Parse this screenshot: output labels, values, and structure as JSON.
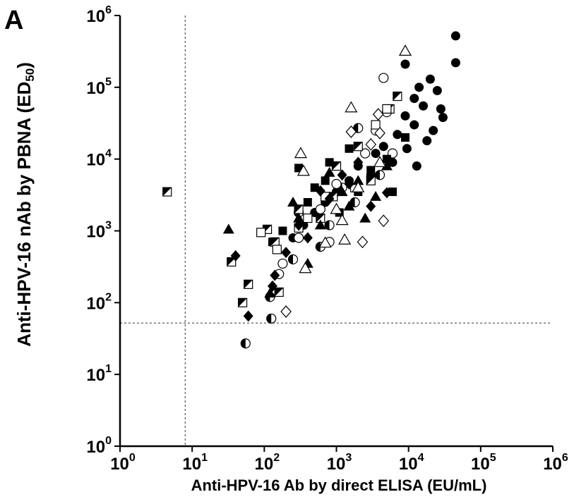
{
  "panel_label": "A",
  "chart_data": {
    "type": "scatter",
    "title": "",
    "xlabel": "Anti-HPV-16 Ab by direct ELISA (EU/mL)",
    "ylabel": {
      "main": "Anti-HPV-16 nAb by PBNA (ED",
      "subscript": "50",
      "suffix": ")"
    },
    "x_scale": "log",
    "y_scale": "log",
    "xlim": [
      1,
      1000000
    ],
    "ylim": [
      1,
      1000000
    ],
    "x_ticks": [
      {
        "base": "10",
        "exp": "0",
        "value": 1
      },
      {
        "base": "10",
        "exp": "1",
        "value": 10
      },
      {
        "base": "10",
        "exp": "2",
        "value": 100
      },
      {
        "base": "10",
        "exp": "3",
        "value": 1000
      },
      {
        "base": "10",
        "exp": "4",
        "value": 10000
      },
      {
        "base": "10",
        "exp": "5",
        "value": 100000
      },
      {
        "base": "10",
        "exp": "6",
        "value": 1000000
      }
    ],
    "y_ticks": [
      {
        "base": "10",
        "exp": "0",
        "value": 1
      },
      {
        "base": "10",
        "exp": "1",
        "value": 10
      },
      {
        "base": "10",
        "exp": "2",
        "value": 100
      },
      {
        "base": "10",
        "exp": "3",
        "value": 1000
      },
      {
        "base": "10",
        "exp": "4",
        "value": 10000
      },
      {
        "base": "10",
        "exp": "5",
        "value": 100000
      },
      {
        "base": "10",
        "exp": "6",
        "value": 1000000
      }
    ],
    "grid": false,
    "cutoff_lines": {
      "x": 8,
      "y": 52,
      "style": "dashed"
    },
    "series": [
      {
        "marker": "filled-circle",
        "points": [
          [
            45000,
            520000
          ],
          [
            9000,
            210000
          ],
          [
            45000,
            220000
          ],
          [
            14000,
            100000
          ],
          [
            20000,
            130000
          ],
          [
            12000,
            70000
          ],
          [
            25000,
            90000
          ],
          [
            16000,
            55000
          ],
          [
            28000,
            50000
          ],
          [
            9000,
            40000
          ],
          [
            12000,
            30000
          ],
          [
            22000,
            25000
          ],
          [
            7000,
            22000
          ],
          [
            4500,
            15000
          ],
          [
            3500,
            12000
          ],
          [
            6000,
            9000
          ],
          [
            3000,
            6000
          ],
          [
            2000,
            8000
          ],
          [
            1500,
            5000
          ],
          [
            1000,
            3500
          ],
          [
            700,
            2500
          ],
          [
            500,
            1800
          ],
          [
            350,
            1200
          ],
          [
            250,
            800
          ],
          [
            18000,
            18000
          ],
          [
            30000,
            38000
          ],
          [
            9500,
            14000
          ],
          [
            13000,
            8000
          ]
        ]
      },
      {
        "marker": "half-filled-circle",
        "points": [
          [
            2000,
            27000
          ],
          [
            4000,
            6000
          ],
          [
            1200,
            4000
          ],
          [
            300,
            1800
          ],
          [
            120,
            120
          ],
          [
            125,
            60
          ],
          [
            55,
            27
          ],
          [
            800,
            1200
          ],
          [
            1800,
            2500
          ],
          [
            600,
            600
          ],
          [
            250,
            400
          ]
        ]
      },
      {
        "marker": "open-circle",
        "points": [
          [
            4500,
            135000
          ],
          [
            5000,
            45000
          ],
          [
            3500,
            25000
          ],
          [
            2500,
            12000
          ],
          [
            1000,
            4500
          ],
          [
            600,
            2000
          ],
          [
            180,
            350
          ],
          [
            160,
            250
          ],
          [
            300,
            800
          ],
          [
            800,
            700
          ],
          [
            6000,
            12000
          ]
        ]
      },
      {
        "marker": "filled-square",
        "points": [
          [
            7000,
            75000
          ],
          [
            300,
            7500
          ],
          [
            9000,
            20000
          ],
          [
            6000,
            3500
          ],
          [
            5000,
            10000
          ],
          [
            1500,
            14000
          ],
          [
            800,
            9000
          ],
          [
            500,
            4000
          ],
          [
            1100,
            1800
          ],
          [
            2000,
            3500
          ],
          [
            180,
            1000
          ],
          [
            130,
            700
          ],
          [
            3000,
            7000
          ],
          [
            400,
            2500
          ],
          [
            700,
            5000
          ]
        ]
      },
      {
        "marker": "half-filled-square",
        "points": [
          [
            4.5,
            3500
          ],
          [
            7000,
            75000
          ],
          [
            5500,
            50000
          ],
          [
            2000,
            15000
          ],
          [
            1000,
            8000
          ],
          [
            140,
            700
          ],
          [
            160,
            140
          ],
          [
            60,
            180
          ],
          [
            50,
            100
          ],
          [
            35,
            370
          ],
          [
            300,
            2000
          ],
          [
            900,
            3000
          ],
          [
            3000,
            5000
          ],
          [
            110,
            1050
          ],
          [
            600,
            1500
          ]
        ]
      },
      {
        "marker": "open-square",
        "points": [
          [
            5000,
            50000
          ],
          [
            3500,
            30000
          ],
          [
            1800,
            4000
          ],
          [
            700,
            3000
          ],
          [
            300,
            1100
          ],
          [
            150,
            550
          ],
          [
            90,
            950
          ],
          [
            400,
            1500
          ]
        ]
      },
      {
        "marker": "filled-triangle",
        "points": [
          [
            32,
            1050
          ],
          [
            120,
            135
          ],
          [
            400,
            350
          ],
          [
            2500,
            1500
          ],
          [
            1200,
            3500
          ],
          [
            800,
            6500
          ],
          [
            300,
            1500
          ],
          [
            2000,
            5000
          ],
          [
            600,
            1200
          ],
          [
            1500,
            2200
          ],
          [
            5000,
            8000
          ],
          [
            250,
            2500
          ],
          [
            3500,
            3000
          ]
        ]
      },
      {
        "marker": "open-triangle",
        "points": [
          [
            9000,
            320000
          ],
          [
            1600,
            52000
          ],
          [
            320,
            12000
          ],
          [
            350,
            6800
          ],
          [
            1200,
            1400
          ],
          [
            1000,
            2000
          ],
          [
            1300,
            750
          ],
          [
            700,
            680
          ],
          [
            370,
            300
          ],
          [
            2000,
            4000
          ],
          [
            4000,
            9000
          ]
        ]
      },
      {
        "marker": "filled-diamond",
        "points": [
          [
            40,
            450
          ],
          [
            60,
            65
          ],
          [
            130,
            170
          ],
          [
            140,
            240
          ],
          [
            400,
            800
          ],
          [
            300,
            1200
          ],
          [
            800,
            2800
          ],
          [
            3000,
            2200
          ],
          [
            5000,
            3400
          ],
          [
            1200,
            6000
          ],
          [
            2000,
            9000
          ],
          [
            600,
            3600
          ],
          [
            200,
            500
          ],
          [
            1500,
            4500
          ]
        ]
      },
      {
        "marker": "open-diamond",
        "points": [
          [
            3800,
            42000
          ],
          [
            1600,
            24000
          ],
          [
            4500,
            1380
          ],
          [
            2300,
            700
          ],
          [
            200,
            75
          ],
          [
            4000,
            23000
          ],
          [
            3000,
            16000
          ]
        ]
      }
    ]
  }
}
